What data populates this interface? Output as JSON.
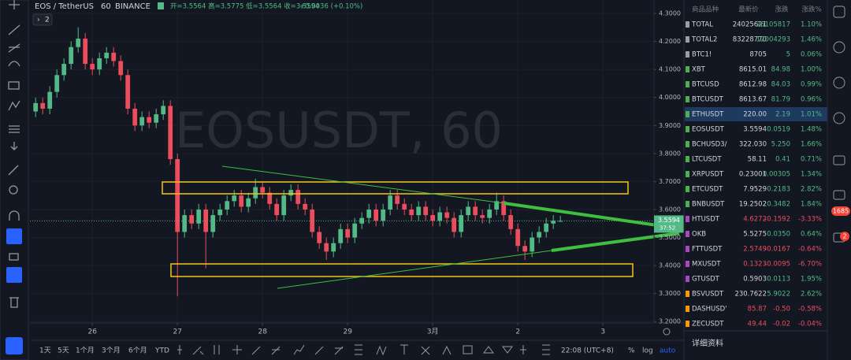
{
  "header": {
    "symbol": "EOS / TetherUS",
    "interval": "60",
    "exchange": "BINANCE",
    "ohlc": "开=3.5564 高=3.5775 低=3.5564 收=3.5594",
    "change": "+0.0036 (+0.10%)",
    "layout_count": "2"
  },
  "watermark": "EOSUSDT, 60",
  "countdown": "37:52",
  "chart_data": {
    "type": "candlestick",
    "x": [
      0,
      2,
      4,
      6,
      8,
      10,
      12,
      14,
      16,
      18,
      20,
      22,
      24,
      26,
      28,
      30,
      32,
      34,
      36,
      38,
      40,
      42,
      44,
      46,
      48,
      50,
      52,
      54,
      56,
      58,
      60,
      62,
      64,
      66,
      68,
      70,
      72,
      74,
      76,
      78,
      80,
      82,
      84,
      86,
      88,
      90,
      92,
      94,
      96,
      98,
      100,
      102,
      104,
      106,
      108,
      110,
      112,
      114,
      116,
      118,
      120,
      122,
      124,
      126,
      128,
      130,
      132,
      134,
      136,
      138,
      140,
      142,
      144,
      146,
      148
    ],
    "open": [
      3.95,
      3.98,
      3.96,
      4.02,
      4.08,
      4.12,
      4.18,
      4.21,
      4.12,
      4.1,
      4.14,
      4.16,
      4.13,
      4.08,
      3.96,
      3.9,
      3.93,
      3.91,
      3.94,
      3.97,
      3.78,
      3.52,
      3.58,
      3.55,
      3.6,
      3.52,
      3.58,
      3.6,
      3.63,
      3.65,
      3.61,
      3.64,
      3.68,
      3.66,
      3.62,
      3.58,
      3.65,
      3.67,
      3.62,
      3.6,
      3.52,
      3.48,
      3.45,
      3.48,
      3.53,
      3.5,
      3.55,
      3.57,
      3.6,
      3.56,
      3.6,
      3.65,
      3.62,
      3.6,
      3.58,
      3.61,
      3.58,
      3.56,
      3.59,
      3.57,
      3.52,
      3.58,
      3.61,
      3.58,
      3.57,
      3.6,
      3.63,
      3.58,
      3.53,
      3.47,
      3.45,
      3.5,
      3.52,
      3.55,
      3.5564
    ],
    "high": [
      4.0,
      4.0,
      4.04,
      4.1,
      4.14,
      4.2,
      4.25,
      4.23,
      4.14,
      4.16,
      4.18,
      4.18,
      4.15,
      4.1,
      3.98,
      3.95,
      3.95,
      3.96,
      3.99,
      3.99,
      3.8,
      3.6,
      3.6,
      3.62,
      3.62,
      3.6,
      3.62,
      3.65,
      3.67,
      3.67,
      3.66,
      3.71,
      3.7,
      3.68,
      3.64,
      3.67,
      3.69,
      3.69,
      3.64,
      3.62,
      3.54,
      3.5,
      3.5,
      3.55,
      3.55,
      3.57,
      3.59,
      3.62,
      3.62,
      3.62,
      3.67,
      3.67,
      3.64,
      3.62,
      3.63,
      3.63,
      3.6,
      3.61,
      3.61,
      3.59,
      3.6,
      3.63,
      3.63,
      3.6,
      3.62,
      3.66,
      3.65,
      3.6,
      3.55,
      3.49,
      3.52,
      3.54,
      3.57,
      3.58,
      3.5775
    ],
    "low": [
      3.93,
      3.94,
      3.94,
      4.0,
      4.06,
      4.1,
      4.16,
      4.1,
      4.08,
      4.08,
      4.12,
      4.11,
      4.06,
      3.94,
      3.88,
      3.88,
      3.89,
      3.89,
      3.92,
      3.76,
      3.29,
      3.5,
      3.53,
      3.53,
      3.39,
      3.5,
      3.56,
      3.58,
      3.61,
      3.59,
      3.59,
      3.62,
      3.64,
      3.6,
      3.56,
      3.56,
      3.63,
      3.6,
      3.58,
      3.5,
      3.46,
      3.42,
      3.43,
      3.46,
      3.48,
      3.48,
      3.53,
      3.55,
      3.54,
      3.54,
      3.58,
      3.6,
      3.58,
      3.56,
      3.56,
      3.56,
      3.54,
      3.54,
      3.55,
      3.5,
      3.5,
      3.56,
      3.56,
      3.55,
      3.55,
      3.58,
      3.56,
      3.51,
      3.45,
      3.42,
      3.43,
      3.48,
      3.5,
      3.53,
      3.5564
    ],
    "close": [
      3.98,
      3.96,
      4.02,
      4.08,
      4.12,
      4.18,
      4.21,
      4.12,
      4.1,
      4.14,
      4.16,
      4.13,
      4.08,
      3.96,
      3.9,
      3.93,
      3.91,
      3.94,
      3.97,
      3.78,
      3.52,
      3.58,
      3.55,
      3.6,
      3.52,
      3.58,
      3.6,
      3.63,
      3.65,
      3.61,
      3.64,
      3.68,
      3.66,
      3.62,
      3.58,
      3.65,
      3.67,
      3.62,
      3.6,
      3.52,
      3.48,
      3.45,
      3.48,
      3.53,
      3.5,
      3.55,
      3.57,
      3.6,
      3.56,
      3.6,
      3.65,
      3.62,
      3.6,
      3.58,
      3.61,
      3.58,
      3.56,
      3.59,
      3.57,
      3.52,
      3.58,
      3.61,
      3.58,
      3.57,
      3.6,
      3.63,
      3.58,
      3.53,
      3.47,
      3.45,
      3.5,
      3.52,
      3.55,
      3.56,
      3.5594
    ],
    "up_color": "#53b987",
    "down_color": "#eb4d5c",
    "xlim": [
      -1.6,
      174.4
    ],
    "xticks": [
      {
        "value": 16,
        "label": "26"
      },
      {
        "value": 40,
        "label": "27"
      },
      {
        "value": 64,
        "label": "28"
      },
      {
        "value": 88,
        "label": "29"
      },
      {
        "value": 112,
        "label": "3月"
      },
      {
        "value": 136,
        "label": "2"
      },
      {
        "value": 160,
        "label": "3"
      }
    ],
    "ylim": [
      3.195,
      4.348
    ],
    "yticks": [
      {
        "value": 3.2,
        "label": "3.2000"
      },
      {
        "value": 3.3,
        "label": "3.3000"
      },
      {
        "value": 3.4,
        "label": "3.4000"
      },
      {
        "value": 3.5,
        "label": "3.5000"
      },
      {
        "value": 3.6,
        "label": "3.6000"
      },
      {
        "value": 3.7,
        "label": "3.7000"
      },
      {
        "value": 3.8,
        "label": "3.8000"
      },
      {
        "value": 3.9,
        "label": "3.9000"
      },
      {
        "value": 4.0,
        "label": "4.0000"
      },
      {
        "value": 4.1,
        "label": "4.1000"
      },
      {
        "value": 4.2,
        "label": "4.2000"
      },
      {
        "value": 4.3,
        "label": "4.3000"
      }
    ],
    "grid": true
  },
  "watchlist": {
    "columns": [
      "商品品种",
      "最新价",
      "涨跌",
      "涨跌%"
    ],
    "rows": [
      {
        "name": "TOTAL",
        "price": "24025621",
        "change": "26105817",
        "pct": "1.10%",
        "color": "#9e9e9e",
        "up": true
      },
      {
        "name": "TOTAL2",
        "price": "83228770",
        "change": "12004293",
        "pct": "1.46%",
        "color": "#9e9e9e",
        "up": true
      },
      {
        "name": "BTC1!",
        "price": "8705",
        "change": "5",
        "pct": "0.06%",
        "color": "#9e9e9e",
        "up": true
      },
      {
        "name": "XBT",
        "price": "8615.01",
        "change": "84.98",
        "pct": "1.00%",
        "color": "#4caf50",
        "up": true
      },
      {
        "name": "BTCUSD",
        "price": "8612.98",
        "change": "84.03",
        "pct": "0.99%",
        "color": "#4caf50",
        "up": true
      },
      {
        "name": "BTCUSDT",
        "price": "8613.67",
        "change": "81.79",
        "pct": "0.96%",
        "color": "#4caf50",
        "up": true
      },
      {
        "name": "ETHUSDT",
        "price": "220.00",
        "change": "2.19",
        "pct": "1.01%",
        "color": "#4caf50",
        "up": true
      },
      {
        "name": "EOSUSDT",
        "price": "3.5594",
        "change": "0.0519",
        "pct": "1.48%",
        "color": "#4caf50",
        "up": true
      },
      {
        "name": "BCHUSD3/",
        "price": "322.030",
        "change": "5.250",
        "pct": "1.66%",
        "color": "#4caf50",
        "up": true
      },
      {
        "name": "LTCUSDT",
        "price": "58.11",
        "change": "0.41",
        "pct": "0.71%",
        "color": "#4caf50",
        "up": true
      },
      {
        "name": "XRPUSDT",
        "price": "0.23001",
        "change": "0.00305",
        "pct": "1.34%",
        "color": "#4caf50",
        "up": true
      },
      {
        "name": "ETCUSDT",
        "price": "7.9529",
        "change": "0.2183",
        "pct": "2.82%",
        "color": "#4caf50",
        "up": true
      },
      {
        "name": "BNBUSDT",
        "price": "19.2502",
        "change": "0.3482",
        "pct": "1.84%",
        "color": "#4caf50",
        "up": true
      },
      {
        "name": "HTUSDT",
        "price": "4.6272",
        "change": "-0.1592",
        "pct": "-3.33%",
        "color": "#ab47bc",
        "up": false
      },
      {
        "name": "OKB",
        "price": "5.5275",
        "change": "0.0350",
        "pct": "0.64%",
        "color": "#ab47bc",
        "up": true
      },
      {
        "name": "FTTUSDT",
        "price": "2.5749",
        "change": "-0.0167",
        "pct": "-0.64%",
        "color": "#ab47bc",
        "up": false
      },
      {
        "name": "MXUSDT",
        "price": "0.1323",
        "change": "-0.0095",
        "pct": "-6.70%",
        "color": "#ab47bc",
        "up": false
      },
      {
        "name": "GTUSDT",
        "price": "0.5903",
        "change": "0.0113",
        "pct": "1.95%",
        "color": "#ab47bc",
        "up": true
      },
      {
        "name": "BSVUSDT",
        "price": "230.7622",
        "change": "5.9022",
        "pct": "2.62%",
        "color": "#ff9800",
        "up": true
      },
      {
        "name": "DASHUSD'",
        "price": "85.87",
        "change": "-0.50",
        "pct": "-0.58%",
        "color": "#ff9800",
        "up": false
      },
      {
        "name": "ZECUSDT",
        "price": "49.44",
        "change": "-0.02",
        "pct": "-0.04%",
        "color": "#ff9800",
        "up": false
      }
    ],
    "details": "详细资料"
  },
  "bottom_bar": {
    "ranges": [
      "1天",
      "5天",
      "1个月",
      "3个月",
      "6个月",
      "YTD"
    ],
    "clock": "22:08 (UTC+8)",
    "percent": "%",
    "log": "log",
    "auto": "auto"
  },
  "badges": [
    "1685",
    "2"
  ]
}
